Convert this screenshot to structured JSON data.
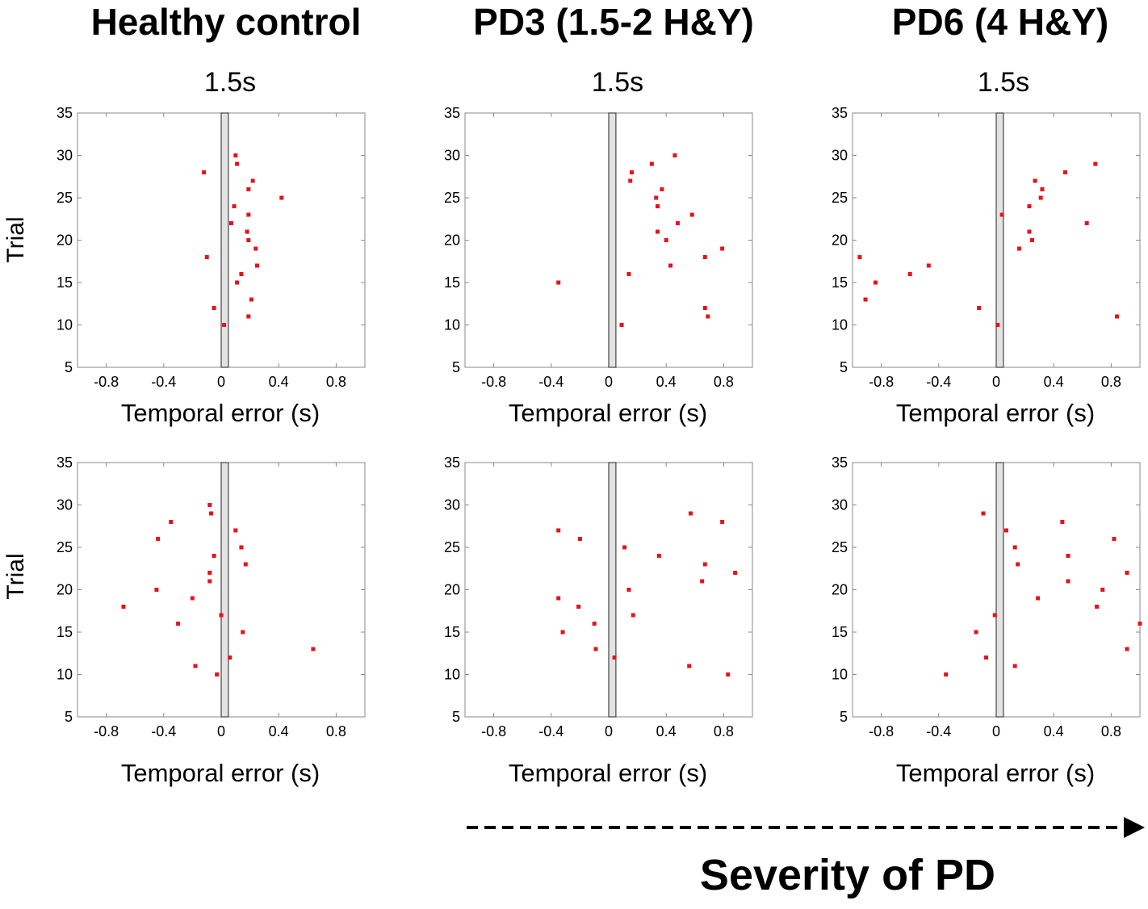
{
  "figure": {
    "severity_label": "Severity of PD",
    "groups": [
      {
        "title": "Healthy control",
        "subtitle": "1.5s"
      },
      {
        "title": "PD3 (1.5-2 H&Y)",
        "subtitle": "1.5s"
      },
      {
        "title": "PD6 (4 H&Y)",
        "subtitle": "1.5s"
      }
    ]
  },
  "chart_data": [
    {
      "type": "scatter",
      "title": "Healthy control 1.5s (upper)",
      "xlabel": "Temporal error (s)",
      "ylabel": "Trial",
      "xlim": [
        -1.0,
        1.0
      ],
      "ylim": [
        5,
        35
      ],
      "xticks": [
        "-0.8",
        "-0.4",
        "0",
        "0.4",
        "0.8"
      ],
      "yticks": [
        "5",
        "10",
        "15",
        "20",
        "25",
        "30",
        "35"
      ],
      "target_band": [
        0,
        0.05
      ],
      "points": [
        [
          0.1,
          30
        ],
        [
          0.11,
          29
        ],
        [
          -0.12,
          28
        ],
        [
          0.22,
          27
        ],
        [
          0.19,
          26
        ],
        [
          0.42,
          25
        ],
        [
          0.09,
          24
        ],
        [
          0.19,
          23
        ],
        [
          0.07,
          22
        ],
        [
          0.18,
          21
        ],
        [
          0.19,
          20
        ],
        [
          0.24,
          19
        ],
        [
          -0.1,
          18
        ],
        [
          0.25,
          17
        ],
        [
          0.14,
          16
        ],
        [
          0.11,
          15
        ],
        [
          0.21,
          13
        ],
        [
          -0.05,
          12
        ],
        [
          0.19,
          11
        ],
        [
          0.02,
          10
        ]
      ]
    },
    {
      "type": "scatter",
      "title": "PD3 (1.5-2 H&Y) 1.5s (upper)",
      "xlabel": "Temporal error (s)",
      "ylabel": "Trial",
      "xlim": [
        -1.0,
        1.0
      ],
      "ylim": [
        5,
        35
      ],
      "xticks": [
        "-0.8",
        "-0.4",
        "0",
        "0.4",
        "0.8"
      ],
      "yticks": [
        "5",
        "10",
        "15",
        "20",
        "25",
        "30",
        "35"
      ],
      "target_band": [
        0,
        0.05
      ],
      "points": [
        [
          0.46,
          30
        ],
        [
          0.3,
          29
        ],
        [
          0.16,
          28
        ],
        [
          0.15,
          27
        ],
        [
          0.37,
          26
        ],
        [
          0.33,
          25
        ],
        [
          0.34,
          24
        ],
        [
          0.58,
          23
        ],
        [
          0.48,
          22
        ],
        [
          0.34,
          21
        ],
        [
          0.4,
          20
        ],
        [
          0.79,
          19
        ],
        [
          0.67,
          18
        ],
        [
          0.43,
          17
        ],
        [
          0.14,
          16
        ],
        [
          -0.35,
          15
        ],
        [
          0.67,
          12
        ],
        [
          0.69,
          11
        ],
        [
          0.09,
          10
        ]
      ]
    },
    {
      "type": "scatter",
      "title": "PD6 (4 H&Y) 1.5s (upper)",
      "xlabel": "Temporal error (s)",
      "ylabel": "Trial",
      "xlim": [
        -1.0,
        1.0
      ],
      "ylim": [
        5,
        35
      ],
      "xticks": [
        "-0.8",
        "-0.4",
        "0",
        "0.4",
        "0.8"
      ],
      "yticks": [
        "5",
        "10",
        "15",
        "20",
        "25",
        "30",
        "35"
      ],
      "target_band": [
        0,
        0.05
      ],
      "points": [
        [
          0.69,
          29
        ],
        [
          0.48,
          28
        ],
        [
          0.27,
          27
        ],
        [
          0.32,
          26
        ],
        [
          0.31,
          25
        ],
        [
          0.23,
          24
        ],
        [
          0.04,
          23
        ],
        [
          0.63,
          22
        ],
        [
          0.23,
          21
        ],
        [
          0.25,
          20
        ],
        [
          0.16,
          19
        ],
        [
          -0.95,
          18
        ],
        [
          -0.47,
          17
        ],
        [
          -0.6,
          16
        ],
        [
          -0.84,
          15
        ],
        [
          -0.91,
          13
        ],
        [
          -0.12,
          12
        ],
        [
          0.84,
          11
        ],
        [
          0.01,
          10
        ]
      ]
    },
    {
      "type": "scatter",
      "title": "Healthy control 1.5s (lower)",
      "xlabel": "Temporal error (s)",
      "ylabel": "Trial",
      "xlim": [
        -1.0,
        1.0
      ],
      "ylim": [
        5,
        35
      ],
      "xticks": [
        "-0.8",
        "-0.4",
        "0",
        "0.4",
        "0.8"
      ],
      "yticks": [
        "5",
        "10",
        "15",
        "20",
        "25",
        "30",
        "35"
      ],
      "target_band": [
        0,
        0.05
      ],
      "points": [
        [
          -0.08,
          30
        ],
        [
          -0.07,
          29
        ],
        [
          -0.35,
          28
        ],
        [
          0.1,
          27
        ],
        [
          -0.44,
          26
        ],
        [
          0.14,
          25
        ],
        [
          -0.05,
          24
        ],
        [
          0.17,
          23
        ],
        [
          -0.08,
          22
        ],
        [
          -0.08,
          21
        ],
        [
          -0.45,
          20
        ],
        [
          -0.2,
          19
        ],
        [
          -0.68,
          18
        ],
        [
          0.0,
          17
        ],
        [
          -0.3,
          16
        ],
        [
          0.15,
          15
        ],
        [
          0.64,
          13
        ],
        [
          0.06,
          12
        ],
        [
          -0.18,
          11
        ],
        [
          -0.03,
          10
        ]
      ]
    },
    {
      "type": "scatter",
      "title": "PD3 (1.5-2 H&Y) 1.5s (lower)",
      "xlabel": "Temporal error (s)",
      "ylabel": "Trial",
      "xlim": [
        -1.0,
        1.0
      ],
      "ylim": [
        5,
        35
      ],
      "xticks": [
        "-0.8",
        "-0.4",
        "0",
        "0.4",
        "0.8"
      ],
      "yticks": [
        "5",
        "10",
        "15",
        "20",
        "25",
        "30",
        "35"
      ],
      "target_band": [
        0,
        0.05
      ],
      "points": [
        [
          0.57,
          29
        ],
        [
          0.79,
          28
        ],
        [
          -0.35,
          27
        ],
        [
          -0.2,
          26
        ],
        [
          0.11,
          25
        ],
        [
          0.35,
          24
        ],
        [
          0.67,
          23
        ],
        [
          0.88,
          22
        ],
        [
          0.65,
          21
        ],
        [
          0.14,
          20
        ],
        [
          -0.35,
          19
        ],
        [
          -0.21,
          18
        ],
        [
          0.17,
          17
        ],
        [
          -0.1,
          16
        ],
        [
          -0.32,
          15
        ],
        [
          -0.09,
          13
        ],
        [
          0.04,
          12
        ],
        [
          0.56,
          11
        ],
        [
          0.83,
          10
        ]
      ]
    },
    {
      "type": "scatter",
      "title": "PD6 (4 H&Y) 1.5s (lower)",
      "xlabel": "Temporal error (s)",
      "ylabel": "Trial",
      "xlim": [
        -1.0,
        1.0
      ],
      "ylim": [
        5,
        35
      ],
      "xticks": [
        "-0.8",
        "-0.4",
        "0",
        "0.4",
        "0.8"
      ],
      "yticks": [
        "5",
        "10",
        "15",
        "20",
        "25",
        "30",
        "35"
      ],
      "target_band": [
        0,
        0.05
      ],
      "points": [
        [
          -0.09,
          29
        ],
        [
          0.46,
          28
        ],
        [
          0.07,
          27
        ],
        [
          0.82,
          26
        ],
        [
          0.13,
          25
        ],
        [
          0.5,
          24
        ],
        [
          0.15,
          23
        ],
        [
          0.91,
          22
        ],
        [
          0.5,
          21
        ],
        [
          0.74,
          20
        ],
        [
          0.29,
          19
        ],
        [
          0.7,
          18
        ],
        [
          -0.01,
          17
        ],
        [
          1.0,
          16
        ],
        [
          -0.14,
          15
        ],
        [
          0.91,
          13
        ],
        [
          -0.07,
          12
        ],
        [
          0.13,
          11
        ],
        [
          -0.35,
          10
        ]
      ]
    }
  ]
}
